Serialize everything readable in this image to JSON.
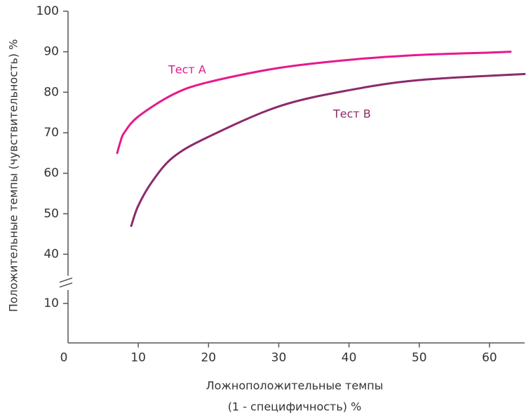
{
  "chart_data": {
    "type": "line",
    "y_label": "Положительные темпы (чувствительность) %",
    "x_label": [
      "Ложноположительные темпы",
      "(1 - специфичность) %"
    ],
    "xlim": [
      0,
      65
    ],
    "xticks": [
      0,
      10,
      20,
      30,
      40,
      50,
      60
    ],
    "ylim": [
      0,
      100
    ],
    "yticks": [
      10,
      40,
      50,
      60,
      70,
      80,
      90,
      100
    ],
    "y_break": [
      14,
      34
    ],
    "series": [
      {
        "name": "Тест A",
        "color": "#e6198c",
        "x": [
          7,
          7.5,
          8,
          10,
          15,
          20,
          30,
          40,
          50,
          60,
          63
        ],
        "values": [
          65,
          68,
          70,
          74,
          79.5,
          82.5,
          86,
          88,
          89.2,
          89.8,
          90
        ]
      },
      {
        "name": "Тест B",
        "color": "#8c2a6b",
        "x": [
          9,
          10,
          12,
          15,
          20,
          30,
          40,
          50,
          65
        ],
        "values": [
          47,
          52,
          58,
          64,
          69,
          76.5,
          80.5,
          83,
          84.5
        ]
      }
    ]
  }
}
